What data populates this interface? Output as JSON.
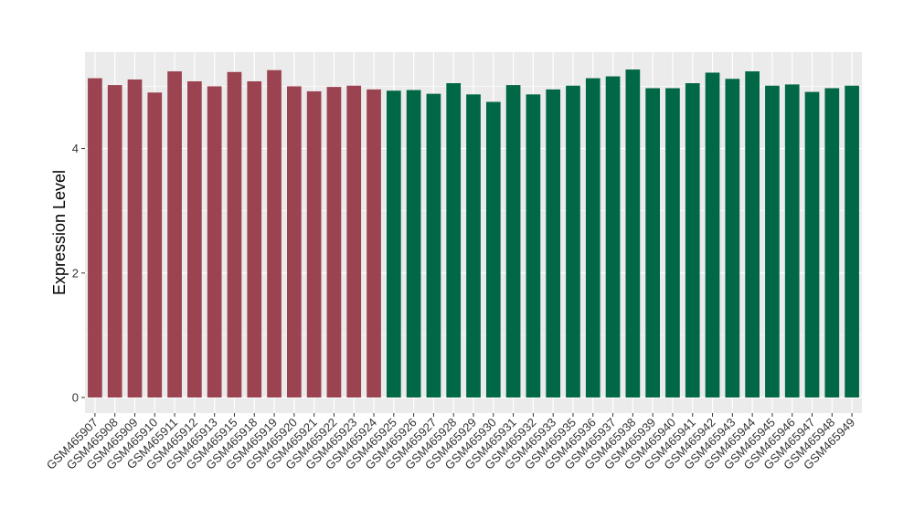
{
  "chart_data": {
    "type": "bar",
    "title": "",
    "xlabel": "",
    "ylabel": "Expression Level",
    "ylim": [
      -0.25,
      5.55
    ],
    "yticks": [
      0,
      2,
      4
    ],
    "grid": true,
    "legend": "none",
    "colors": {
      "group1": "#9b4350",
      "group2": "#006846",
      "panel": "#ebebeb",
      "grid": "#ffffff"
    },
    "categories": [
      "GSM465907",
      "GSM465908",
      "GSM465909",
      "GSM465910",
      "GSM465911",
      "GSM465912",
      "GSM465913",
      "GSM465915",
      "GSM465918",
      "GSM465919",
      "GSM465920",
      "GSM465921",
      "GSM465922",
      "GSM465923",
      "GSM465924",
      "GSM465925",
      "GSM465926",
      "GSM465927",
      "GSM465928",
      "GSM465929",
      "GSM465930",
      "GSM465931",
      "GSM465932",
      "GSM465933",
      "GSM465935",
      "GSM465936",
      "GSM465937",
      "GSM465938",
      "GSM465939",
      "GSM465940",
      "GSM465941",
      "GSM465942",
      "GSM465943",
      "GSM465944",
      "GSM465945",
      "GSM465946",
      "GSM465947",
      "GSM465948",
      "GSM465949"
    ],
    "values": [
      5.13,
      5.02,
      5.11,
      4.9,
      5.24,
      5.08,
      5.0,
      5.23,
      5.08,
      5.26,
      5.0,
      4.92,
      4.99,
      5.01,
      4.95,
      4.93,
      4.94,
      4.88,
      5.05,
      4.87,
      4.75,
      5.02,
      4.87,
      4.95,
      5.01,
      5.13,
      5.16,
      5.27,
      4.97,
      4.97,
      5.05,
      5.22,
      5.12,
      5.24,
      5.01,
      5.03,
      4.91,
      4.97,
      5.01
    ],
    "groups": [
      1,
      1,
      1,
      1,
      1,
      1,
      1,
      1,
      1,
      1,
      1,
      1,
      1,
      1,
      1,
      2,
      2,
      2,
      2,
      2,
      2,
      2,
      2,
      2,
      2,
      2,
      2,
      2,
      2,
      2,
      2,
      2,
      2,
      2,
      2,
      2,
      2,
      2,
      2
    ]
  }
}
